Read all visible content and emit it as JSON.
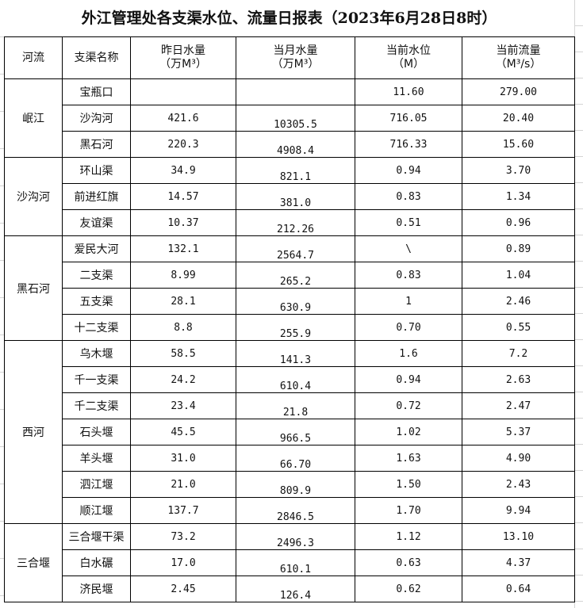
{
  "title": "外江管理处各支渠水位、流量日报表（2023年6月28日8时）",
  "headers": {
    "river": "河流",
    "canal": "支渠名称",
    "yesterday": "昨日水量",
    "yesterday_unit": "（万M³）",
    "month": "当月水量",
    "month_unit": "（万M³）",
    "level": "当前水位",
    "level_unit": "（M）",
    "flow": "当前流量",
    "flow_unit": "（M³/s）"
  },
  "groups": [
    {
      "river": "岷江",
      "rows": [
        {
          "canal": "宝瓶口",
          "yesterday": "",
          "month": "",
          "level": "11.60",
          "flow": "279.00"
        },
        {
          "canal": "沙沟河",
          "yesterday": "421.6",
          "month": "10305.5",
          "level": "716.05",
          "flow": "20.40"
        },
        {
          "canal": "黑石河",
          "yesterday": "220.3",
          "month": "4908.4",
          "level": "716.33",
          "flow": "15.60"
        }
      ]
    },
    {
      "river": "沙沟河",
      "rows": [
        {
          "canal": "环山渠",
          "yesterday": "34.9",
          "month": "821.1",
          "level": "0.94",
          "flow": "3.70"
        },
        {
          "canal": "前进红旗",
          "yesterday": "14.57",
          "month": "381.0",
          "level": "0.83",
          "flow": "1.34"
        },
        {
          "canal": "友谊渠",
          "yesterday": "10.37",
          "month": "212.26",
          "level": "0.51",
          "flow": "0.96"
        }
      ]
    },
    {
      "river": "黑石河",
      "rows": [
        {
          "canal": "爱民大河",
          "yesterday": "132.1",
          "month": "2564.7",
          "level": "\\",
          "flow": "0.89"
        },
        {
          "canal": "二支渠",
          "yesterday": "8.99",
          "month": "265.2",
          "level": "0.83",
          "flow": "1.04"
        },
        {
          "canal": "五支渠",
          "yesterday": "28.1",
          "month": "630.9",
          "level": "1",
          "flow": "2.46"
        },
        {
          "canal": "十二支渠",
          "yesterday": "8.8",
          "month": "255.9",
          "level": "0.70",
          "flow": "0.55"
        }
      ]
    },
    {
      "river": "西河",
      "rows": [
        {
          "canal": "乌木堰",
          "yesterday": "58.5",
          "month": "141.3",
          "level": "1.6",
          "flow": "7.2"
        },
        {
          "canal": "千一支渠",
          "yesterday": "24.2",
          "month": "610.4",
          "level": "0.94",
          "flow": "2.63"
        },
        {
          "canal": "千二支渠",
          "yesterday": "23.4",
          "month": "21.8",
          "level": "0.72",
          "flow": "2.47"
        },
        {
          "canal": "石头堰",
          "yesterday": "45.5",
          "month": "966.5",
          "level": "1.02",
          "flow": "5.37"
        },
        {
          "canal": "羊头堰",
          "yesterday": "31.0",
          "month": "66.70",
          "level": "1.63",
          "flow": "4.90"
        },
        {
          "canal": "泗江堰",
          "yesterday": "21.0",
          "month": "809.9",
          "level": "1.50",
          "flow": "2.43"
        },
        {
          "canal": "顺江堰",
          "yesterday": "137.7",
          "month": "2846.5",
          "level": "1.70",
          "flow": "9.94"
        }
      ]
    },
    {
      "river": "三合堰",
      "rows": [
        {
          "canal": "三合堰干渠",
          "yesterday": "73.2",
          "month": "2496.3",
          "level": "1.12",
          "flow": "13.10"
        },
        {
          "canal": "白水碾",
          "yesterday": "17.0",
          "month": "610.1",
          "level": "0.63",
          "flow": "4.37"
        },
        {
          "canal": "济民堰",
          "yesterday": "2.45",
          "month": "126.4",
          "level": "0.62",
          "flow": "0.64"
        }
      ]
    }
  ]
}
